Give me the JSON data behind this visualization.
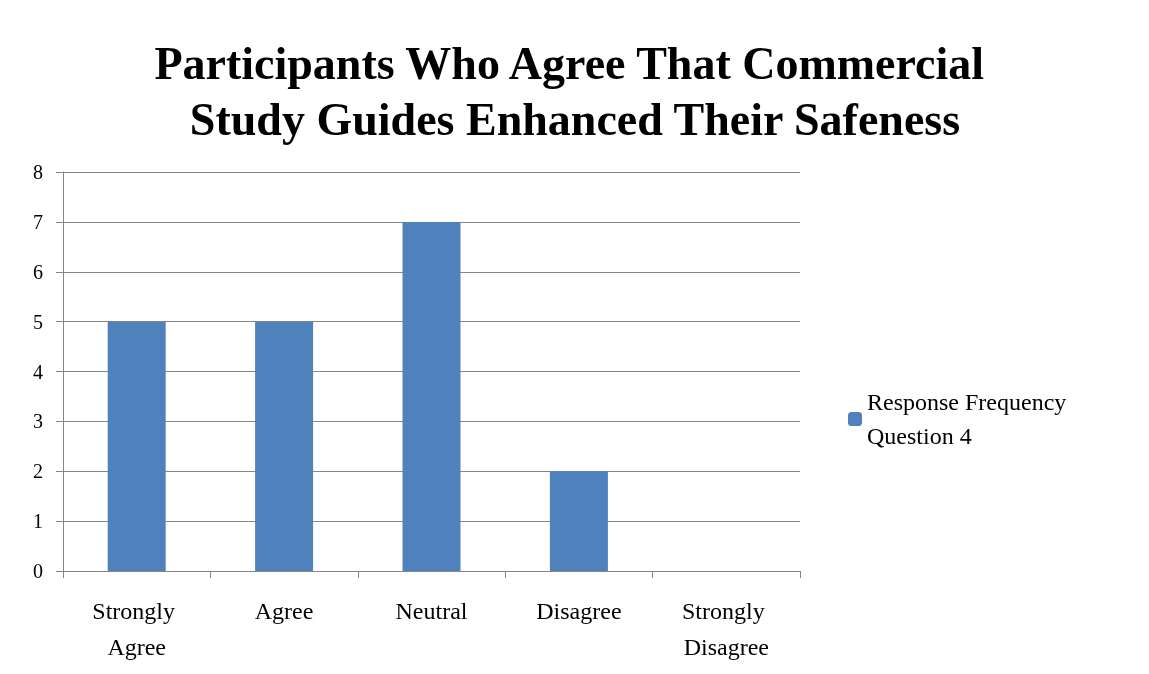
{
  "chart_data": {
    "type": "bar",
    "title": "Participants Who Agree That Commercial Study Guides Enhanced Their Safeness",
    "categories": [
      "Strongly Agree",
      "Agree",
      "Neutral",
      "Disagree",
      "Strongly Disagree"
    ],
    "series": [
      {
        "name": "Response Frequency Question 4",
        "color": "#4f81bd",
        "values": [
          5,
          5,
          7,
          2,
          0
        ]
      }
    ],
    "ylim": [
      0,
      8
    ],
    "yticks": [
      0,
      1,
      2,
      3,
      4,
      5,
      6,
      7,
      8
    ],
    "grid": "y",
    "legend": "right"
  }
}
